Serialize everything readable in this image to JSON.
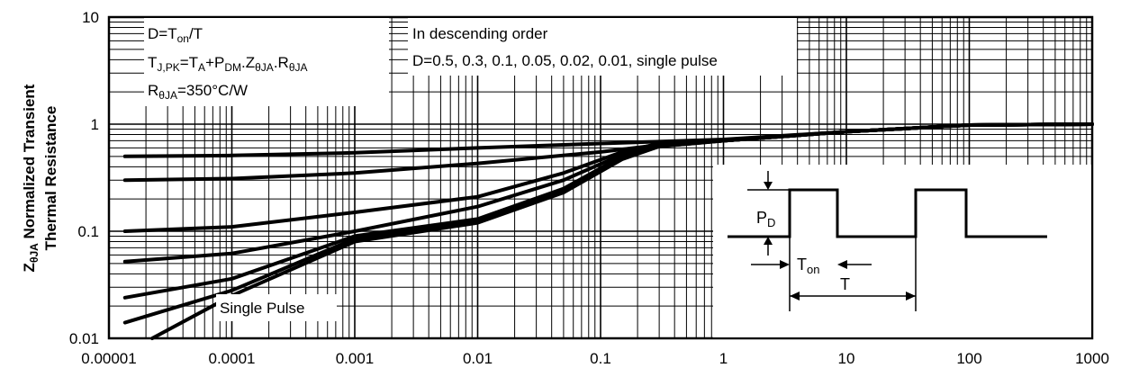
{
  "chart_data": {
    "type": "line",
    "title": "",
    "xlabel": "",
    "ylabel_line1": "Normalized Transient",
    "ylabel_line2": "Thermal Resistance",
    "ylabel_sym_main": "Z",
    "ylabel_sym_sub": "θJA",
    "x_scale": "log",
    "y_scale": "log",
    "xlim": [
      1e-05,
      1000
    ],
    "ylim": [
      0.01,
      10
    ],
    "grid": true,
    "x_ticks": [
      {
        "value": 1e-05,
        "label": "0.00001"
      },
      {
        "value": 0.0001,
        "label": "0.0001"
      },
      {
        "value": 0.001,
        "label": "0.001"
      },
      {
        "value": 0.01,
        "label": "0.01"
      },
      {
        "value": 0.1,
        "label": "0.1"
      },
      {
        "value": 1,
        "label": "1"
      },
      {
        "value": 10,
        "label": "10"
      },
      {
        "value": 100,
        "label": "100"
      },
      {
        "value": 1000,
        "label": "1000"
      }
    ],
    "y_ticks": [
      {
        "value": 0.01,
        "label": "0.01"
      },
      {
        "value": 0.1,
        "label": "0.1"
      },
      {
        "value": 1,
        "label": "1"
      },
      {
        "value": 10,
        "label": "10"
      }
    ],
    "series": [
      {
        "values": [
          [
            1.35e-05,
            0.5
          ],
          [
            0.0001,
            0.51
          ],
          [
            0.001,
            0.54
          ],
          [
            0.01,
            0.6
          ],
          [
            0.1,
            0.66
          ],
          [
            1,
            0.72
          ],
          [
            10,
            0.85
          ],
          [
            100,
            0.98
          ],
          [
            1000,
            1.0
          ]
        ]
      },
      {
        "values": [
          [
            1.35e-05,
            0.3
          ],
          [
            0.0001,
            0.31
          ],
          [
            0.001,
            0.35
          ],
          [
            0.01,
            0.43
          ],
          [
            0.1,
            0.55
          ],
          [
            0.3,
            0.64
          ],
          [
            1,
            0.7
          ],
          [
            10,
            0.85
          ],
          [
            100,
            0.98
          ],
          [
            1000,
            1.0
          ]
        ]
      },
      {
        "values": [
          [
            1.35e-05,
            0.1
          ],
          [
            0.0001,
            0.11
          ],
          [
            0.001,
            0.15
          ],
          [
            0.01,
            0.21
          ],
          [
            0.05,
            0.35
          ],
          [
            0.15,
            0.55
          ],
          [
            0.3,
            0.66
          ],
          [
            1,
            0.7
          ],
          [
            10,
            0.85
          ],
          [
            100,
            0.98
          ],
          [
            1000,
            1.0
          ]
        ]
      },
      {
        "values": [
          [
            1.35e-05,
            0.052
          ],
          [
            0.0001,
            0.062
          ],
          [
            0.001,
            0.1
          ],
          [
            0.01,
            0.17
          ],
          [
            0.05,
            0.3
          ],
          [
            0.15,
            0.52
          ],
          [
            0.3,
            0.64
          ],
          [
            1,
            0.7
          ],
          [
            10,
            0.85
          ],
          [
            100,
            0.98
          ],
          [
            1000,
            1.0
          ]
        ]
      },
      {
        "values": [
          [
            1.35e-05,
            0.024
          ],
          [
            0.0001,
            0.036
          ],
          [
            0.001,
            0.09
          ],
          [
            0.01,
            0.13
          ],
          [
            0.05,
            0.25
          ],
          [
            0.15,
            0.5
          ],
          [
            0.3,
            0.63
          ],
          [
            1,
            0.7
          ],
          [
            10,
            0.85
          ],
          [
            100,
            0.98
          ],
          [
            1000,
            1.0
          ]
        ]
      },
      {
        "values": [
          [
            1.35e-05,
            0.014
          ],
          [
            0.0001,
            0.028
          ],
          [
            0.001,
            0.085
          ],
          [
            0.01,
            0.125
          ],
          [
            0.05,
            0.24
          ],
          [
            0.15,
            0.48
          ],
          [
            0.3,
            0.62
          ],
          [
            1,
            0.7
          ],
          [
            10,
            0.85
          ],
          [
            100,
            0.98
          ],
          [
            1000,
            1.0
          ]
        ]
      },
      {
        "name": "Single Pulse",
        "values": [
          [
            2.25e-05,
            0.01
          ],
          [
            0.0001,
            0.025
          ],
          [
            0.001,
            0.08
          ],
          [
            0.01,
            0.12
          ],
          [
            0.05,
            0.23
          ],
          [
            0.15,
            0.47
          ],
          [
            0.3,
            0.62
          ],
          [
            1,
            0.7
          ],
          [
            10,
            0.85
          ],
          [
            100,
            0.98
          ],
          [
            1000,
            1.0
          ]
        ]
      }
    ],
    "annotations": {
      "eq1_a": "D=T",
      "eq1_b": "on",
      "eq1_c": "/T",
      "eq2_a": "T",
      "eq2_b": "J,PK",
      "eq2_c": "=T",
      "eq2_d": "A",
      "eq2_e": "+P",
      "eq2_f": "DM",
      "eq2_g": ".Z",
      "eq2_h": "θJA",
      "eq2_i": ".R",
      "eq2_j": "θJA",
      "eq3_a": "R",
      "eq3_b": "θJA",
      "eq3_c": "=350°C/W",
      "order_line1": "In descending order",
      "order_line2": "D=0.5, 0.3, 0.1, 0.05, 0.02, 0.01, single pulse",
      "single_pulse": "Single Pulse"
    },
    "inset": {
      "pd_main": "P",
      "pd_sub": "D",
      "ton_main": "T",
      "ton_sub": "on",
      "t_label": "T"
    }
  }
}
